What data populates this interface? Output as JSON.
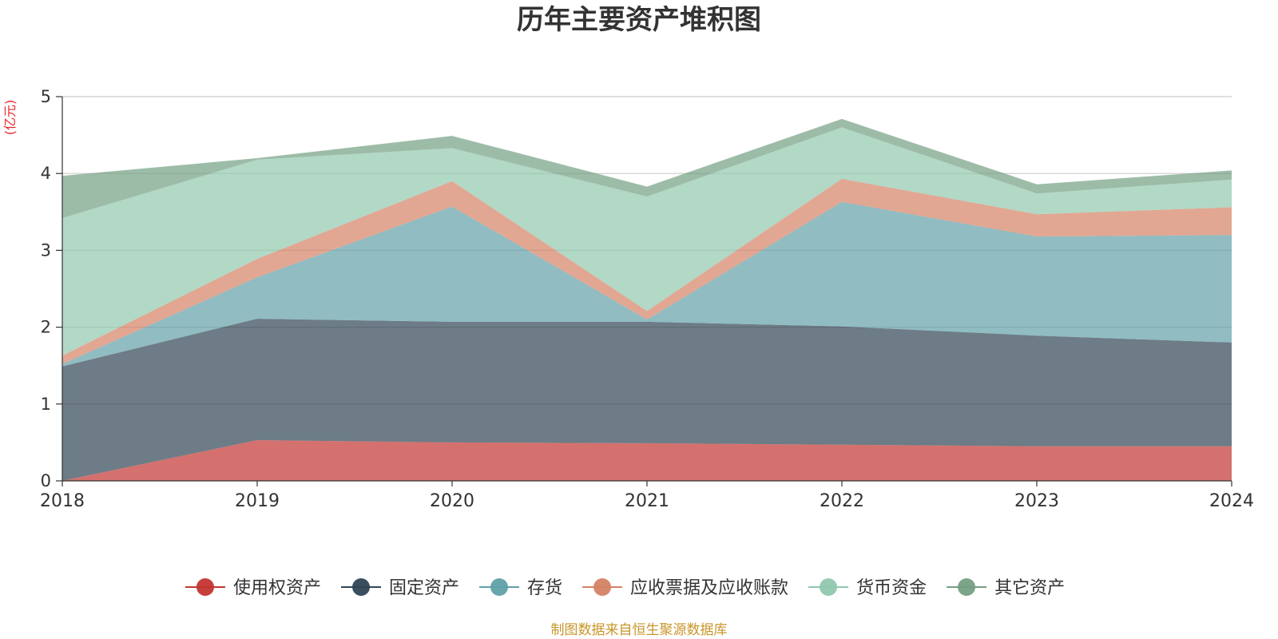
{
  "chart_data": {
    "type": "area",
    "stacked": true,
    "title": "历年主要资产堆积图",
    "unit_label": "(亿元)",
    "x": [
      "2018",
      "2019",
      "2020",
      "2021",
      "2022",
      "2023",
      "2024"
    ],
    "ylim": [
      0,
      5
    ],
    "yticks": [
      "0",
      "1",
      "2",
      "3",
      "4",
      "5"
    ],
    "grid": true,
    "legend_position": "bottom",
    "series": [
      {
        "name": "使用权资产",
        "color": "#c23531",
        "values": [
          0.0,
          0.53,
          0.5,
          0.49,
          0.47,
          0.45,
          0.45
        ]
      },
      {
        "name": "固定资产",
        "color": "#2f4554",
        "values": [
          1.49,
          1.58,
          1.57,
          1.58,
          1.54,
          1.44,
          1.35
        ]
      },
      {
        "name": "存货",
        "color": "#61a0a8",
        "values": [
          0.03,
          0.54,
          1.5,
          0.03,
          1.62,
          1.29,
          1.4
        ]
      },
      {
        "name": "应收票据及应收账款",
        "color": "#d48265",
        "values": [
          0.11,
          0.24,
          0.33,
          0.11,
          0.3,
          0.29,
          0.36
        ]
      },
      {
        "name": "货币资金",
        "color": "#91c7ae",
        "values": [
          1.79,
          1.29,
          0.43,
          1.49,
          0.67,
          0.27,
          0.36
        ]
      },
      {
        "name": "其它资产",
        "color": "#749f83",
        "values": [
          0.55,
          0.02,
          0.16,
          0.13,
          0.11,
          0.12,
          0.12
        ]
      }
    ],
    "source_note": "制图数据来自恒生聚源数据库"
  }
}
